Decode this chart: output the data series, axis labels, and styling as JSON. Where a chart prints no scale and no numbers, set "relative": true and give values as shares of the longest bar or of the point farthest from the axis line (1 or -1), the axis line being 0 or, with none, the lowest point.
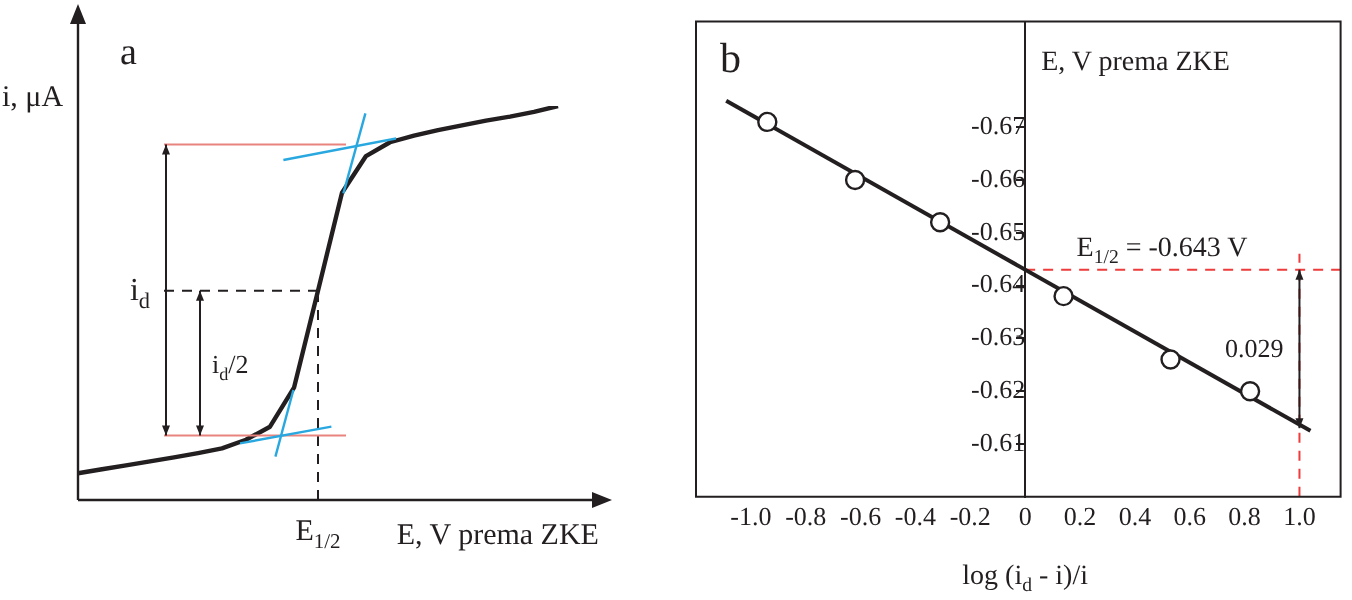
{
  "chart_data": [
    {
      "type": "line",
      "title": "a",
      "xlabel": "E, V prema ZKE",
      "ylabel": "i, μA",
      "relative": true,
      "marker": "none",
      "categories": [
        null,
        null,
        null,
        null,
        null,
        null,
        null,
        null,
        null,
        null,
        null,
        null,
        null,
        null,
        null,
        null,
        null,
        null,
        null,
        null,
        null
      ],
      "series": [
        {
          "color": "#231f20",
          "values": [
            0.068,
            0.078,
            0.088,
            0.098,
            0.108,
            0.119,
            0.131,
            0.153,
            0.186,
            0.285,
            0.531,
            0.78,
            0.873,
            0.908,
            0.925,
            0.939,
            0.951,
            0.963,
            0.973,
            0.985,
            1
          ]
        }
      ],
      "ref_lines": [
        {
          "axis": "y",
          "value": 0.902,
          "color": "#e8837e",
          "line_style": "solid"
        },
        {
          "axis": "y",
          "value": 0.164,
          "color": "#e8837e",
          "line_style": "solid"
        },
        {
          "axis": "y",
          "value": 0.531,
          "color": "#231f20",
          "line_style": "dashed"
        }
      ],
      "annotations": [
        {
          "text": "E$_{1/2}$",
          "y": 0.531
        },
        "i$_{d}$",
        "i$_{d}$/2"
      ]
    },
    {
      "type": "scatter",
      "title": "b",
      "xlabel": "log (i$_{d}$ - i)/i",
      "ylabel": "E, V prema ZKE",
      "marker": "circle",
      "xlim": [
        -1.2,
        1.15
      ],
      "xticks": [
        {
          "value": -1,
          "label": "-1.0"
        },
        -0.8,
        -0.6,
        -0.4,
        -0.2,
        0,
        0.2,
        0.4,
        0.6,
        0.8,
        {
          "value": 1,
          "label": "1.0"
        }
      ],
      "ylim": [
        -0.6,
        -0.69
      ],
      "yticks": [
        -0.67,
        -0.66,
        -0.65,
        -0.64,
        -0.63,
        -0.62,
        -0.61
      ],
      "series": [
        {
          "type": "scatter",
          "color": "#231f20",
          "x": [
            -0.94,
            -0.62,
            -0.31,
            0.14,
            0.53,
            0.82
          ],
          "values": [
            -0.671,
            -0.66,
            -0.652,
            -0.638,
            -0.626,
            -0.62
          ]
        },
        {
          "type": "line",
          "color": "#231f20",
          "marker": "none",
          "x": [
            -1.09,
            1.04
          ],
          "values": [
            -0.675,
            -0.6125
          ]
        }
      ],
      "ref_lines": [
        {
          "axis": "y",
          "value": -0.643,
          "label": "E$_{1/2}$ = -0.643 V",
          "color": "#ee3b3b",
          "line_style": "dashed"
        },
        {
          "axis": "x",
          "value": 1,
          "color": "#ee3b3b",
          "line_style": "dashed"
        }
      ],
      "annotations": [
        {
          "text": "0.029",
          "x": 1,
          "y": -0.628
        }
      ]
    }
  ]
}
